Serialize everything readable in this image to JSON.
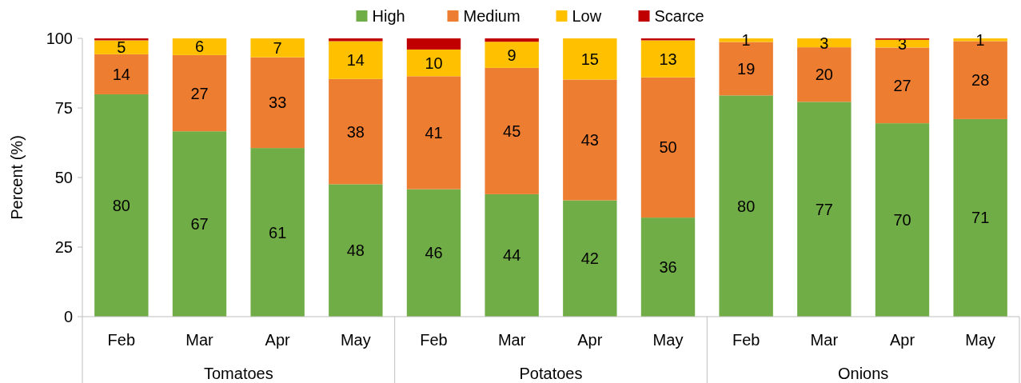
{
  "chart_data": {
    "type": "bar",
    "stacked": true,
    "ylabel": "Percent (%)",
    "categories": [
      "Feb",
      "Mar",
      "Apr",
      "May",
      "Feb",
      "Mar",
      "Apr",
      "May",
      "Feb",
      "Mar",
      "Apr",
      "May"
    ],
    "annotations": [
      "Tomatoes",
      "Potatoes",
      "Onions"
    ],
    "ylim": [
      0,
      100
    ],
    "yticks": [
      0,
      25,
      50,
      75,
      100
    ],
    "grid": false,
    "legend": "top",
    "series": [
      {
        "name": "High",
        "color": "#70ad47",
        "values": [
          79.9,
          66.6,
          60.6,
          47.6,
          45.8,
          44.0,
          41.8,
          35.6,
          79.5,
          77.2,
          69.5,
          71.0
        ],
        "value_labels": [
          "80",
          "67",
          "61",
          "48",
          "46",
          "44",
          "42",
          "36",
          "80",
          "77",
          "70",
          "71"
        ]
      },
      {
        "name": "Medium",
        "color": "#ed7d31",
        "values": [
          14.4,
          27.4,
          32.6,
          37.8,
          40.6,
          45.4,
          43.4,
          50.4,
          19.2,
          19.6,
          27.2,
          28.0
        ],
        "value_labels": [
          "14",
          "27",
          "33",
          "38",
          "41",
          "45",
          "43",
          "50",
          "19",
          "20",
          "27",
          "28"
        ]
      },
      {
        "name": "Low",
        "color": "#ffc000",
        "values": [
          5.0,
          6.0,
          6.8,
          13.6,
          9.6,
          9.4,
          14.8,
          13.3,
          1.3,
          3.2,
          2.8,
          1.0
        ],
        "value_labels": [
          "5",
          "6",
          "7",
          "14",
          "10",
          "9",
          "15",
          "13",
          "1",
          "3",
          "3",
          "1"
        ]
      },
      {
        "name": "Scarce",
        "color": "#c00000",
        "values": [
          0.7,
          0,
          0,
          1.0,
          4.0,
          1.2,
          0,
          0.7,
          0,
          0,
          0.5,
          0
        ],
        "value_labels": [
          null,
          null,
          null,
          null,
          null,
          null,
          null,
          null,
          null,
          null,
          null,
          null
        ]
      }
    ]
  }
}
